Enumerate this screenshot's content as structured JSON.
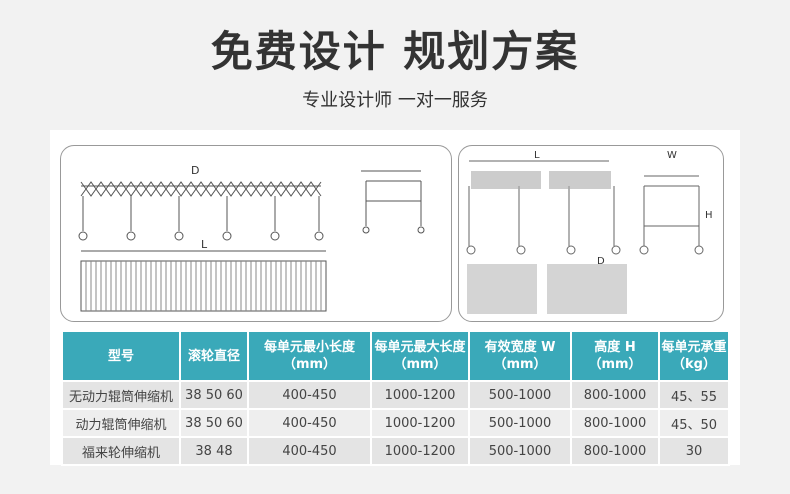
{
  "header": {
    "title": "免费设计  规划方案",
    "subtitle": "专业设计师 一对一服务"
  },
  "drawings": {
    "left_length_label": "L",
    "left_d_label": "D",
    "right_length_label": "L",
    "right_width_label": "W",
    "right_height_label": "H",
    "right_d_label": "D"
  },
  "colors": {
    "table_header": "#3aa9b9",
    "row": "#e4e4e4",
    "background": "#f2f2f2"
  },
  "table": {
    "headers": [
      "型号",
      "滚轮直径",
      "每单元最小长度（mm）",
      "每单元最大长度（mm）",
      "有效宽度 W（mm）",
      "高度 H（mm）",
      "每单元承重（kg）"
    ],
    "rows": [
      [
        "无动力辊筒伸缩机",
        "38 50 60",
        "400-450",
        "1000-1200",
        "500-1000",
        "800-1000",
        "45、55"
      ],
      [
        "动力辊筒伸缩机",
        "38 50 60",
        "400-450",
        "1000-1200",
        "500-1000",
        "800-1000",
        "45、50"
      ],
      [
        "福来轮伸缩机",
        "38 48",
        "400-450",
        "1000-1200",
        "500-1000",
        "800-1000",
        "30"
      ]
    ]
  }
}
